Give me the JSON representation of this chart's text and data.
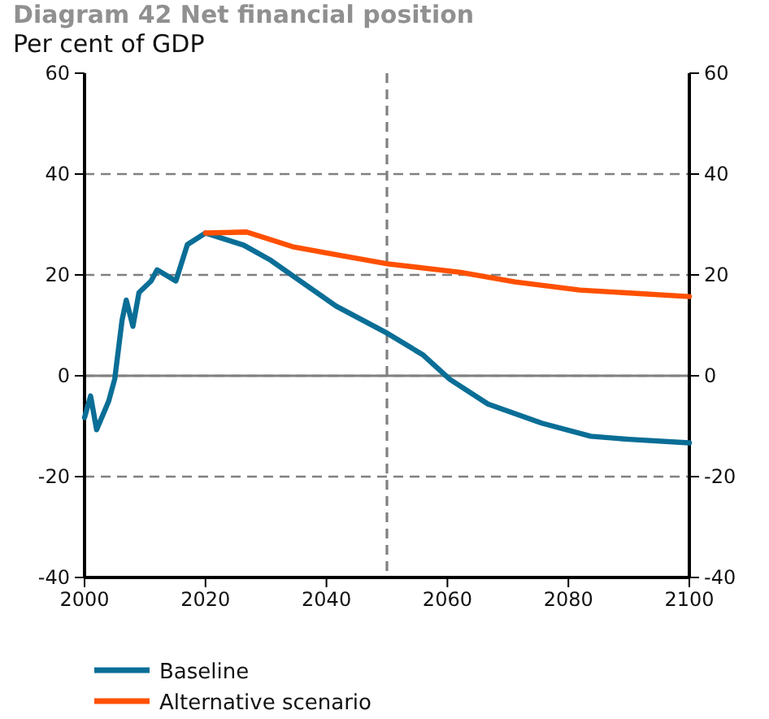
{
  "chart_data": {
    "type": "line",
    "title": "Diagram 42 Net financial position",
    "subtitle": "Per cent of GDP",
    "xlim": [
      2000,
      2100
    ],
    "xticks": [
      2000,
      2020,
      2040,
      2060,
      2080,
      2100
    ],
    "ylim": [
      -40,
      60
    ],
    "yticks": [
      -40,
      -20,
      0,
      20,
      40,
      60
    ],
    "y2lim": [
      -40,
      60
    ],
    "y2ticks": [
      -40,
      -20,
      0,
      20,
      40,
      60
    ],
    "grid": "y",
    "legend": "bottom",
    "marker": "none",
    "line_style": "solid",
    "ref_lines": [
      {
        "axis": "y",
        "value": 0,
        "color": "#808080",
        "line_style": "solid"
      },
      {
        "axis": "x",
        "value": 2050,
        "color": "#808080",
        "line_style": "dashed"
      }
    ],
    "series": [
      {
        "name": "Baseline",
        "color": "#0a6e96",
        "x": [
          2000,
          2001,
          2002,
          2004,
          2005,
          2006.2,
          2006.9,
          2008,
          2009,
          2011,
          2012,
          2015.1,
          2017,
          2020,
          2026.3,
          2030.8,
          2035.3,
          2041.6,
          2050.1,
          2056,
          2060.4,
          2066.7,
          2075.6,
          2083.7,
          2090,
          2100
        ],
        "values": [
          -8.3,
          -4,
          -10.7,
          -5,
          -0.6,
          11,
          15,
          9.8,
          16.5,
          18.8,
          21,
          18.8,
          26,
          28.3,
          25.9,
          22.9,
          19.1,
          13.8,
          8.4,
          4.1,
          -0.7,
          -5.6,
          -9.4,
          -12,
          -12.6,
          -13.3
        ]
      },
      {
        "name": "Alternative scenario",
        "color": "#ff5000",
        "x": [
          2020,
          2026.8,
          2034.4,
          2041.6,
          2050.1,
          2062.2,
          2071.2,
          2081.9,
          2100
        ],
        "values": [
          28.3,
          28.5,
          25.6,
          24,
          22.2,
          20.5,
          18.6,
          17,
          15.7
        ]
      }
    ]
  }
}
